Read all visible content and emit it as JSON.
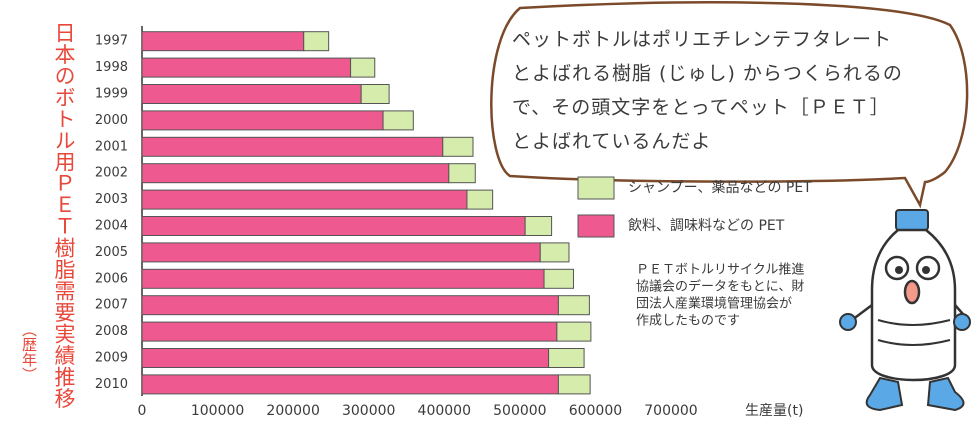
{
  "chart_data": {
    "type": "bar",
    "orientation": "horizontal",
    "stacked": true,
    "title": "日本のボトル用ＰＥＴ樹脂需要実績推移",
    "subtitle": "（歴年）",
    "x_label": "生産量(t)",
    "categories": [
      "1997",
      "1998",
      "1999",
      "2000",
      "2001",
      "2002",
      "2003",
      "2004",
      "2005",
      "2006",
      "2007",
      "2008",
      "2009",
      "2010"
    ],
    "series": [
      {
        "name": "飲料、調味料などの PET",
        "color": "#ee5a90",
        "values": [
          214000,
          276000,
          290000,
          319000,
          398000,
          406000,
          430000,
          507000,
          527000,
          532000,
          551000,
          549000,
          538000,
          551000
        ]
      },
      {
        "name": "シャンプー、薬品などの PET",
        "color": "#d5ecac",
        "values": [
          33000,
          32000,
          37000,
          40000,
          40000,
          35000,
          34000,
          35000,
          38000,
          39000,
          41000,
          45000,
          47000,
          42000
        ]
      }
    ],
    "xlim": [
      0,
      700000
    ],
    "xticks": [
      0,
      100000,
      200000,
      300000,
      400000,
      500000,
      600000,
      700000
    ],
    "source_note": [
      "ＰＥＴボトルリサイクル推進",
      "協議会のデータをもとに、財",
      "団法人産業環境管理協会が",
      "作成したものです"
    ],
    "speech_bubble": [
      "ペットボトルはポリエチレンテフタレート",
      "とよばれる樹脂 (じゅし) からつくられるの",
      "で、その頭文字をとってペット［ＰＥＴ］",
      "とよばれているんだよ"
    ]
  }
}
